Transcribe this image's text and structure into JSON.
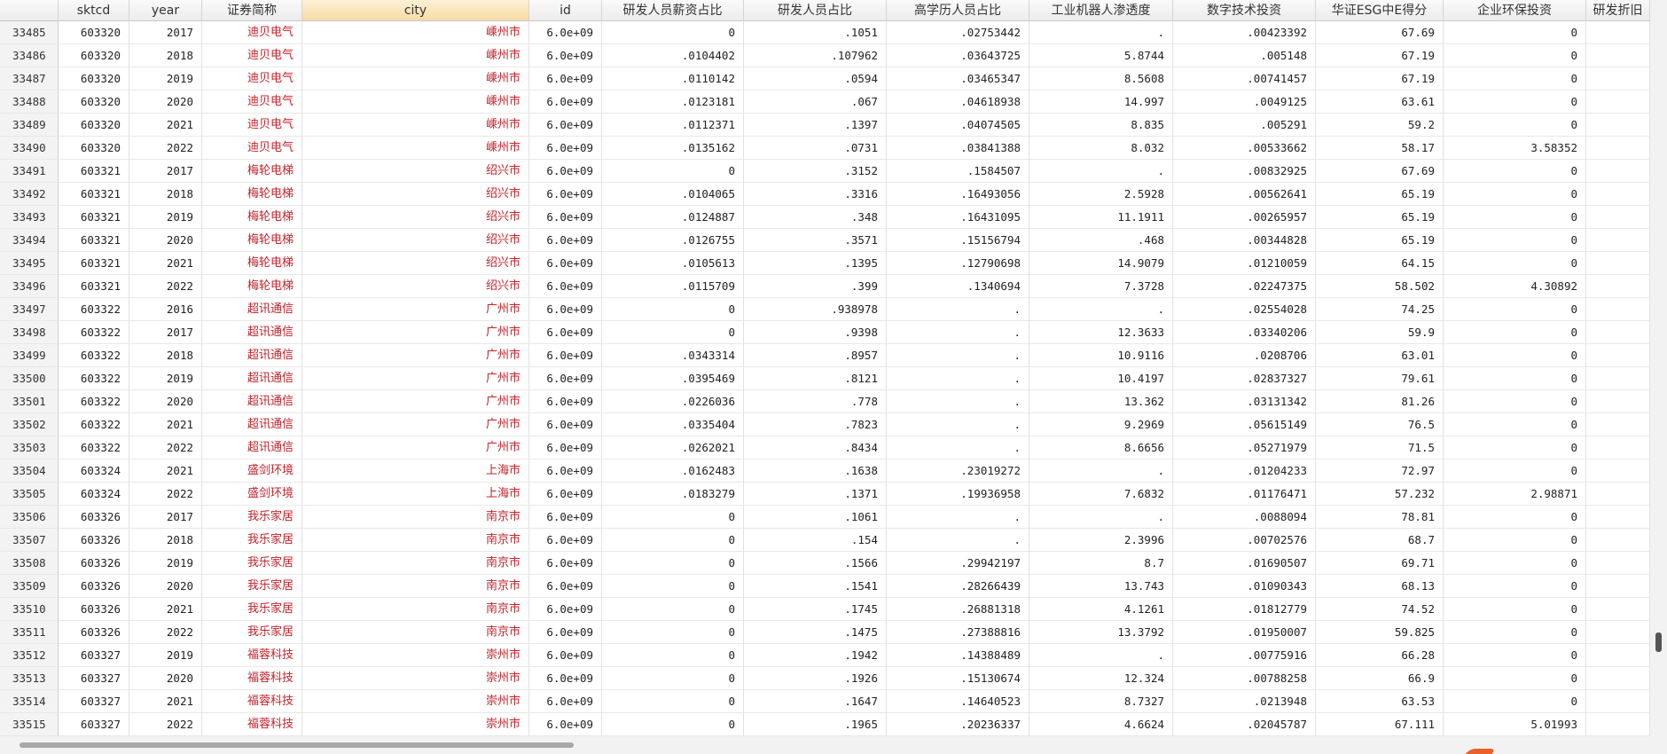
{
  "table": {
    "columns": [
      "sktcd",
      "year",
      "证券简称",
      "city",
      "id",
      "研发人员薪资占比",
      "研发人员占比",
      "高学历人员占比",
      "工业机器人渗透度",
      "数字技术投资",
      "华证ESG中E得分",
      "企业环保投资",
      "研发折旧"
    ],
    "rows": [
      [
        "33485",
        "603320",
        "2017",
        "迪贝电气",
        "嵊州市",
        "6.0e+09",
        "0",
        ".1051",
        ".02753442",
        ".",
        ".00423392",
        "67.69",
        "0"
      ],
      [
        "33486",
        "603320",
        "2018",
        "迪贝电气",
        "嵊州市",
        "6.0e+09",
        ".0104402",
        ".107962",
        ".03643725",
        "5.8744",
        ".005148",
        "67.19",
        "0"
      ],
      [
        "33487",
        "603320",
        "2019",
        "迪贝电气",
        "嵊州市",
        "6.0e+09",
        ".0110142",
        ".0594",
        ".03465347",
        "8.5608",
        ".00741457",
        "67.19",
        "0"
      ],
      [
        "33488",
        "603320",
        "2020",
        "迪贝电气",
        "嵊州市",
        "6.0e+09",
        ".0123181",
        ".067",
        ".04618938",
        "14.997",
        ".0049125",
        "63.61",
        "0"
      ],
      [
        "33489",
        "603320",
        "2021",
        "迪贝电气",
        "嵊州市",
        "6.0e+09",
        ".0112371",
        ".1397",
        ".04074505",
        "8.835",
        ".005291",
        "59.2",
        "0"
      ],
      [
        "33490",
        "603320",
        "2022",
        "迪贝电气",
        "嵊州市",
        "6.0e+09",
        ".0135162",
        ".0731",
        ".03841388",
        "8.032",
        ".00533662",
        "58.17",
        "3.58352"
      ],
      [
        "33491",
        "603321",
        "2017",
        "梅轮电梯",
        "绍兴市",
        "6.0e+09",
        "0",
        ".3152",
        ".1584507",
        ".",
        ".00832925",
        "67.69",
        "0"
      ],
      [
        "33492",
        "603321",
        "2018",
        "梅轮电梯",
        "绍兴市",
        "6.0e+09",
        ".0104065",
        ".3316",
        ".16493056",
        "2.5928",
        ".00562641",
        "65.19",
        "0"
      ],
      [
        "33493",
        "603321",
        "2019",
        "梅轮电梯",
        "绍兴市",
        "6.0e+09",
        ".0124887",
        ".348",
        ".16431095",
        "11.1911",
        ".00265957",
        "65.19",
        "0"
      ],
      [
        "33494",
        "603321",
        "2020",
        "梅轮电梯",
        "绍兴市",
        "6.0e+09",
        ".0126755",
        ".3571",
        ".15156794",
        ".468",
        ".00344828",
        "65.19",
        "0"
      ],
      [
        "33495",
        "603321",
        "2021",
        "梅轮电梯",
        "绍兴市",
        "6.0e+09",
        ".0105613",
        ".1395",
        ".12790698",
        "14.9079",
        ".01210059",
        "64.15",
        "0"
      ],
      [
        "33496",
        "603321",
        "2022",
        "梅轮电梯",
        "绍兴市",
        "6.0e+09",
        ".0115709",
        ".399",
        ".1340694",
        "7.3728",
        ".02247375",
        "58.502",
        "4.30892"
      ],
      [
        "33497",
        "603322",
        "2016",
        "超讯通信",
        "广州市",
        "6.0e+09",
        "0",
        ".938978",
        ".",
        ".",
        ".02554028",
        "74.25",
        "0"
      ],
      [
        "33498",
        "603322",
        "2017",
        "超讯通信",
        "广州市",
        "6.0e+09",
        "0",
        ".9398",
        ".",
        "12.3633",
        ".03340206",
        "59.9",
        "0"
      ],
      [
        "33499",
        "603322",
        "2018",
        "超讯通信",
        "广州市",
        "6.0e+09",
        ".0343314",
        ".8957",
        ".",
        "10.9116",
        ".0208706",
        "63.01",
        "0"
      ],
      [
        "33500",
        "603322",
        "2019",
        "超讯通信",
        "广州市",
        "6.0e+09",
        ".0395469",
        ".8121",
        ".",
        "10.4197",
        ".02837327",
        "79.61",
        "0"
      ],
      [
        "33501",
        "603322",
        "2020",
        "超讯通信",
        "广州市",
        "6.0e+09",
        ".0226036",
        ".778",
        ".",
        "13.362",
        ".03131342",
        "81.26",
        "0"
      ],
      [
        "33502",
        "603322",
        "2021",
        "超讯通信",
        "广州市",
        "6.0e+09",
        ".0335404",
        ".7823",
        ".",
        "9.2969",
        ".05615149",
        "76.5",
        "0"
      ],
      [
        "33503",
        "603322",
        "2022",
        "超讯通信",
        "广州市",
        "6.0e+09",
        ".0262021",
        ".8434",
        ".",
        "8.6656",
        ".05271979",
        "71.5",
        "0"
      ],
      [
        "33504",
        "603324",
        "2021",
        "盛剑环境",
        "上海市",
        "6.0e+09",
        ".0162483",
        ".1638",
        ".23019272",
        ".",
        ".01204233",
        "72.97",
        "0"
      ],
      [
        "33505",
        "603324",
        "2022",
        "盛剑环境",
        "上海市",
        "6.0e+09",
        ".0183279",
        ".1371",
        ".19936958",
        "7.6832",
        ".01176471",
        "57.232",
        "2.98871"
      ],
      [
        "33506",
        "603326",
        "2017",
        "我乐家居",
        "南京市",
        "6.0e+09",
        "0",
        ".1061",
        ".",
        ".",
        ".0088094",
        "78.81",
        "0"
      ],
      [
        "33507",
        "603326",
        "2018",
        "我乐家居",
        "南京市",
        "6.0e+09",
        "0",
        ".154",
        ".",
        "2.3996",
        ".00702576",
        "68.7",
        "0"
      ],
      [
        "33508",
        "603326",
        "2019",
        "我乐家居",
        "南京市",
        "6.0e+09",
        "0",
        ".1566",
        ".29942197",
        "8.7",
        ".01690507",
        "69.71",
        "0"
      ],
      [
        "33509",
        "603326",
        "2020",
        "我乐家居",
        "南京市",
        "6.0e+09",
        "0",
        ".1541",
        ".28266439",
        "13.743",
        ".01090343",
        "68.13",
        "0"
      ],
      [
        "33510",
        "603326",
        "2021",
        "我乐家居",
        "南京市",
        "6.0e+09",
        "0",
        ".1745",
        ".26881318",
        "4.1261",
        ".01812779",
        "74.52",
        "0"
      ],
      [
        "33511",
        "603326",
        "2022",
        "我乐家居",
        "南京市",
        "6.0e+09",
        "0",
        ".1475",
        ".27388816",
        "13.3792",
        ".01950007",
        "59.825",
        "0"
      ],
      [
        "33512",
        "603327",
        "2019",
        "福蓉科技",
        "崇州市",
        "6.0e+09",
        "0",
        ".1942",
        ".14388489",
        ".",
        ".00775916",
        "66.28",
        "0"
      ],
      [
        "33513",
        "603327",
        "2020",
        "福蓉科技",
        "崇州市",
        "6.0e+09",
        "0",
        ".1926",
        ".15130674",
        "12.324",
        ".00788258",
        "66.9",
        "0"
      ],
      [
        "33514",
        "603327",
        "2021",
        "福蓉科技",
        "崇州市",
        "6.0e+09",
        "0",
        ".1647",
        ".14640523",
        "8.7327",
        ".0213948",
        "63.53",
        "0"
      ],
      [
        "33515",
        "603327",
        "2022",
        "福蓉科技",
        "崇州市",
        "6.0e+09",
        "0",
        ".1965",
        ".20236337",
        "4.6624",
        ".02045787",
        "67.111",
        "5.01993"
      ]
    ]
  }
}
